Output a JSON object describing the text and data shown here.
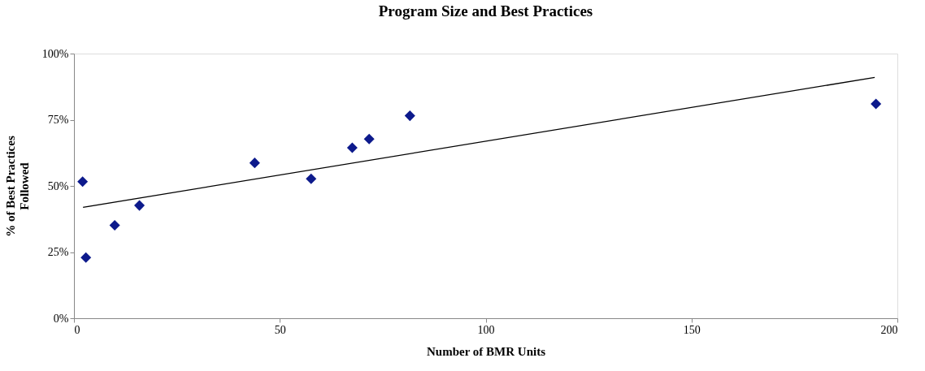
{
  "chart_data": {
    "type": "scatter",
    "title": "Program Size and Best Practices",
    "xlabel": "Number of BMR Units",
    "ylabel": "% of Best Practices Followed",
    "x": [
      2.1,
      2.9,
      9.9,
      15.9,
      43.9,
      57.6,
      67.6,
      71.7,
      81.6,
      194.8
    ],
    "series": [
      {
        "color": "#0d1a8c",
        "marker": "diamond",
        "values": [
          51.6,
          22.9,
          35.1,
          42.6,
          58.7,
          52.7,
          64.4,
          67.7,
          76.5,
          81.0
        ]
      },
      {
        "type": "line",
        "marker": "none",
        "color": "#000000",
        "x": [
          2.2,
          194.5
        ],
        "values": [
          41.9,
          91.0
        ]
      }
    ],
    "line_style": "solid",
    "xlim": [
      0,
      200
    ],
    "xticks": [
      0,
      50,
      100,
      150,
      200
    ],
    "ylim": [
      0,
      100
    ],
    "yticks": [
      {
        "value": 0,
        "label": "0%"
      },
      {
        "value": 25,
        "label": "25%"
      },
      {
        "value": 50,
        "label": "50%"
      },
      {
        "value": 75,
        "label": "75%"
      },
      {
        "value": 100,
        "label": "100%"
      }
    ],
    "grid": false
  }
}
